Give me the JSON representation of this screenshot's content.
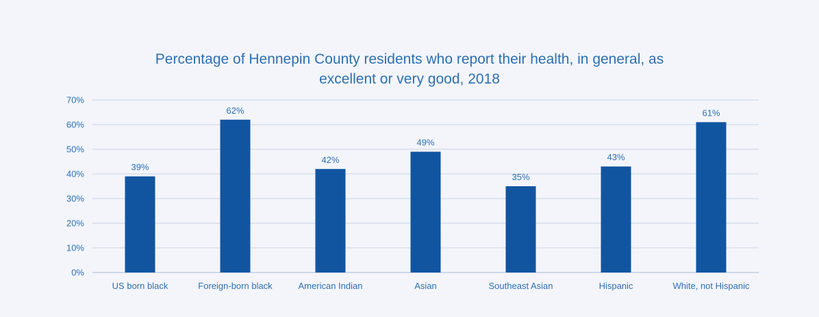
{
  "chart_data": {
    "type": "bar",
    "title_lines": [
      "Percentage of Hennepin County residents who report their health, in general, as",
      "excellent or very good, 2018"
    ],
    "categories": [
      "US born black",
      "Foreign-born black",
      "American Indian",
      "Asian",
      "Southeast Asian",
      "Hispanic",
      "White, not Hispanic"
    ],
    "values": [
      39,
      62,
      42,
      49,
      35,
      43,
      61
    ],
    "data_labels": [
      "39%",
      "62%",
      "42%",
      "49%",
      "35%",
      "43%",
      "61%"
    ],
    "ylim": [
      0,
      70
    ],
    "yticks": [
      0,
      10,
      20,
      30,
      40,
      50,
      60,
      70
    ],
    "ytick_labels": [
      "0%",
      "10%",
      "20%",
      "30%",
      "40%",
      "50%",
      "60%",
      "70%"
    ],
    "xlabel": "",
    "ylabel": "",
    "grid": true,
    "legend": "none",
    "bar_color": "#1155a1",
    "text_color": "#2e6fb0",
    "grid_color": "#c9d3e3",
    "axis_color": "#a9b9d2"
  }
}
